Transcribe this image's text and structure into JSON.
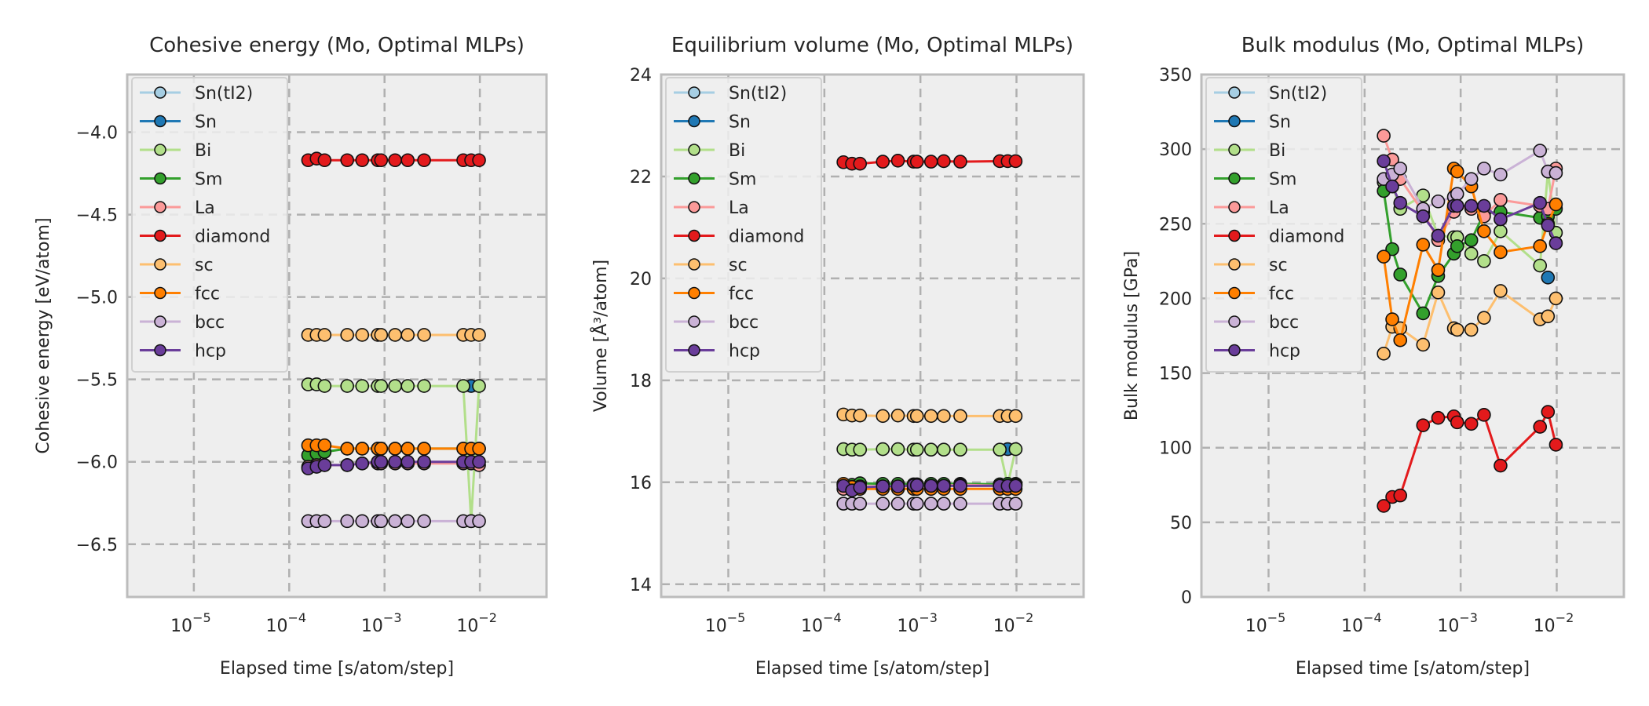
{
  "series_styles": [
    {
      "name": "Sn(tI2)",
      "line": "#a6cee3",
      "marker": "#a6cee3"
    },
    {
      "name": "Sn",
      "line": "#1f78b4",
      "marker": "#1f78b4"
    },
    {
      "name": "Bi",
      "line": "#b2df8a",
      "marker": "#b2df8a"
    },
    {
      "name": "Sm",
      "line": "#33a02c",
      "marker": "#33a02c"
    },
    {
      "name": "La",
      "line": "#fb9a99",
      "marker": "#fb9a99"
    },
    {
      "name": "diamond",
      "line": "#e31a1c",
      "marker": "#e31a1c"
    },
    {
      "name": "sc",
      "line": "#fdbf6f",
      "marker": "#fdbf6f"
    },
    {
      "name": "fcc",
      "line": "#ff7f00",
      "marker": "#ff7f00"
    },
    {
      "name": "bcc",
      "line": "#cab2d6",
      "marker": "#cab2d6"
    },
    {
      "name": "hcp",
      "line": "#6a3d9a",
      "marker": "#6a3d9a"
    }
  ],
  "x_common": [
    0.000158,
    0.000194,
    0.000235,
    0.000406,
    0.000583,
    0.00085,
    0.00092,
    0.00129,
    0.00175,
    0.0026,
    0.0067,
    0.0081,
    0.0098
  ],
  "chart_data": [
    {
      "type": "line",
      "title": "Cohesive energy (Mo, Optimal MLPs)",
      "xlabel": "Elapsed time [s/atom/step]",
      "ylabel": "Cohesive energy [eV/atom]",
      "xscale": "log",
      "xlim": [
        2e-06,
        0.05
      ],
      "ylim": [
        -6.82,
        -3.65
      ],
      "xticks": [
        {
          "v": 1e-05,
          "base": "10",
          "exp": "−5"
        },
        {
          "v": 0.0001,
          "base": "10",
          "exp": "−4"
        },
        {
          "v": 0.001,
          "base": "10",
          "exp": "−3"
        },
        {
          "v": 0.01,
          "base": "10",
          "exp": "−2"
        }
      ],
      "yticks": [
        {
          "v": -4.0,
          "label": "−4.0"
        },
        {
          "v": -4.5,
          "label": "−4.5"
        },
        {
          "v": -5.0,
          "label": "−5.0"
        },
        {
          "v": -5.5,
          "label": "−5.5"
        },
        {
          "v": -6.0,
          "label": "−6.0"
        },
        {
          "v": -6.5,
          "label": "−6.5"
        }
      ],
      "grid": true,
      "legend": "upper-left",
      "series": [
        {
          "name": "Sn(tI2)",
          "values": [
            null,
            null,
            null,
            null,
            null,
            null,
            null,
            null,
            null,
            null,
            null,
            null,
            null
          ]
        },
        {
          "name": "Sn",
          "values": [
            null,
            null,
            null,
            null,
            null,
            null,
            null,
            null,
            null,
            null,
            null,
            -5.54,
            null
          ]
        },
        {
          "name": "Bi",
          "values": [
            -5.53,
            -5.53,
            -5.54,
            -5.54,
            -5.54,
            -5.54,
            -5.54,
            -5.54,
            -5.54,
            -5.54,
            -5.54,
            -6.36,
            -5.54
          ]
        },
        {
          "name": "Sm",
          "values": [
            -5.96,
            -5.95,
            -5.94,
            -5.92,
            -5.92,
            -5.92,
            -5.92,
            -5.92,
            -5.92,
            -5.92,
            -5.92,
            -5.92,
            -5.92
          ]
        },
        {
          "name": "La",
          "values": [
            -6.03,
            -6.02,
            -6.02,
            -6.02,
            -6.01,
            -6.01,
            -6.01,
            -6.01,
            -6.01,
            -6.01,
            -6.01,
            -6.01,
            -6.02
          ]
        },
        {
          "name": "diamond",
          "values": [
            -4.17,
            -4.16,
            -4.17,
            -4.17,
            -4.17,
            -4.17,
            -4.17,
            -4.17,
            -4.17,
            -4.17,
            -4.17,
            -4.17,
            -4.17
          ]
        },
        {
          "name": "sc",
          "values": [
            -5.23,
            -5.23,
            -5.23,
            -5.23,
            -5.23,
            -5.23,
            -5.23,
            -5.23,
            -5.23,
            -5.23,
            -5.23,
            -5.23,
            -5.23
          ]
        },
        {
          "name": "fcc",
          "values": [
            -5.9,
            -5.9,
            -5.9,
            -5.92,
            -5.92,
            -5.92,
            -5.92,
            -5.92,
            -5.92,
            -5.92,
            -5.92,
            -5.92,
            -5.92
          ]
        },
        {
          "name": "bcc",
          "values": [
            -6.36,
            -6.36,
            -6.36,
            -6.36,
            -6.36,
            -6.36,
            -6.36,
            -6.36,
            -6.36,
            -6.36,
            -6.36,
            -6.36,
            -6.36
          ]
        },
        {
          "name": "hcp",
          "values": [
            -6.04,
            -6.03,
            -6.02,
            -6.02,
            -6.01,
            -6.0,
            -6.0,
            -6.0,
            -6.0,
            -6.0,
            -6.0,
            -6.0,
            -6.0
          ]
        }
      ]
    },
    {
      "type": "line",
      "title": "Equilibrium volume (Mo, Optimal MLPs)",
      "xlabel": "Elapsed time [s/atom/step]",
      "ylabel": "Volume [Å³/atom]",
      "xscale": "log",
      "xlim": [
        2e-06,
        0.05
      ],
      "ylim": [
        13.75,
        24.0
      ],
      "xticks": [
        {
          "v": 1e-05,
          "base": "10",
          "exp": "−5"
        },
        {
          "v": 0.0001,
          "base": "10",
          "exp": "−4"
        },
        {
          "v": 0.001,
          "base": "10",
          "exp": "−3"
        },
        {
          "v": 0.01,
          "base": "10",
          "exp": "−2"
        }
      ],
      "yticks": [
        {
          "v": 14,
          "label": "14"
        },
        {
          "v": 16,
          "label": "16"
        },
        {
          "v": 18,
          "label": "18"
        },
        {
          "v": 20,
          "label": "20"
        },
        {
          "v": 22,
          "label": "22"
        },
        {
          "v": 24,
          "label": "24"
        }
      ],
      "grid": true,
      "legend": "upper-left",
      "series": [
        {
          "name": "Sn(tI2)",
          "values": [
            null,
            null,
            null,
            null,
            null,
            null,
            null,
            null,
            null,
            null,
            null,
            null,
            null
          ]
        },
        {
          "name": "Sn",
          "values": [
            null,
            null,
            null,
            null,
            null,
            null,
            null,
            null,
            null,
            null,
            null,
            16.65,
            null
          ]
        },
        {
          "name": "Bi",
          "values": [
            16.65,
            16.64,
            16.64,
            16.65,
            16.65,
            16.64,
            16.64,
            16.64,
            16.64,
            16.64,
            16.64,
            15.95,
            16.65
          ]
        },
        {
          "name": "Sm",
          "values": [
            15.96,
            15.95,
            15.98,
            15.97,
            15.97,
            15.96,
            15.96,
            15.97,
            15.97,
            15.97,
            15.96,
            15.97,
            15.97
          ]
        },
        {
          "name": "La",
          "values": [
            15.87,
            15.9,
            15.92,
            15.92,
            15.92,
            15.93,
            15.93,
            15.93,
            15.93,
            15.95,
            15.93,
            15.93,
            15.95
          ]
        },
        {
          "name": "diamond",
          "values": [
            22.28,
            22.25,
            22.25,
            22.29,
            22.31,
            22.29,
            22.29,
            22.29,
            22.3,
            22.29,
            22.3,
            22.3,
            22.3
          ]
        },
        {
          "name": "sc",
          "values": [
            17.33,
            17.31,
            17.31,
            17.3,
            17.31,
            17.3,
            17.3,
            17.3,
            17.3,
            17.3,
            17.3,
            17.3,
            17.3
          ]
        },
        {
          "name": "fcc",
          "values": [
            15.97,
            15.91,
            15.87,
            15.87,
            15.87,
            15.87,
            15.87,
            15.87,
            15.87,
            15.87,
            15.87,
            15.87,
            15.87
          ]
        },
        {
          "name": "bcc",
          "values": [
            15.58,
            15.58,
            15.58,
            15.58,
            15.58,
            15.58,
            15.58,
            15.58,
            15.58,
            15.58,
            15.58,
            15.58,
            15.58
          ]
        },
        {
          "name": "hcp",
          "values": [
            15.93,
            15.84,
            15.9,
            15.92,
            15.92,
            15.94,
            15.94,
            15.93,
            15.93,
            15.93,
            15.93,
            15.93,
            15.93
          ]
        }
      ]
    },
    {
      "type": "line",
      "title": "Bulk modulus (Mo, Optimal MLPs)",
      "xlabel": "Elapsed time [s/atom/step]",
      "ylabel": "Bulk modulus [GPa]",
      "xscale": "log",
      "xlim": [
        2e-06,
        0.05
      ],
      "ylim": [
        0,
        350
      ],
      "xticks": [
        {
          "v": 1e-05,
          "base": "10",
          "exp": "−5"
        },
        {
          "v": 0.0001,
          "base": "10",
          "exp": "−4"
        },
        {
          "v": 0.001,
          "base": "10",
          "exp": "−3"
        },
        {
          "v": 0.01,
          "base": "10",
          "exp": "−2"
        }
      ],
      "yticks": [
        {
          "v": 0,
          "label": "0"
        },
        {
          "v": 50,
          "label": "50"
        },
        {
          "v": 100,
          "label": "100"
        },
        {
          "v": 150,
          "label": "150"
        },
        {
          "v": 200,
          "label": "200"
        },
        {
          "v": 250,
          "label": "250"
        },
        {
          "v": 300,
          "label": "300"
        },
        {
          "v": 350,
          "label": "350"
        }
      ],
      "grid": true,
      "legend": "upper-left",
      "series": [
        {
          "name": "Sn(tI2)",
          "values": [
            null,
            null,
            null,
            null,
            null,
            null,
            null,
            null,
            null,
            null,
            null,
            null,
            null
          ]
        },
        {
          "name": "Sn",
          "values": [
            null,
            null,
            null,
            null,
            null,
            null,
            null,
            null,
            null,
            null,
            null,
            214,
            null
          ]
        },
        {
          "name": "Bi",
          "values": [
            278,
            276,
            260,
            269,
            242,
            241,
            241,
            230,
            225,
            245,
            222,
            285,
            244
          ]
        },
        {
          "name": "Sm",
          "values": [
            272,
            233,
            216,
            190,
            215,
            230,
            235,
            239,
            257,
            258,
            254,
            255,
            260
          ]
        },
        {
          "name": "La",
          "values": [
            309,
            293,
            280,
            258,
            239,
            258,
            262,
            260,
            255,
            266,
            262,
            260,
            287
          ]
        },
        {
          "name": "diamond",
          "values": [
            61,
            67,
            68,
            115,
            120,
            121,
            117,
            116,
            122,
            88,
            114,
            124,
            102
          ]
        },
        {
          "name": "sc",
          "values": [
            163,
            181,
            180,
            169,
            204,
            180,
            179,
            179,
            187,
            205,
            186,
            188,
            200
          ]
        },
        {
          "name": "fcc",
          "values": [
            228,
            186,
            172,
            236,
            219,
            287,
            285,
            275,
            245,
            231,
            235,
            250,
            263
          ]
        },
        {
          "name": "bcc",
          "values": [
            280,
            283,
            287,
            260,
            265,
            268,
            270,
            280,
            287,
            283,
            299,
            285,
            284
          ]
        },
        {
          "name": "hcp",
          "values": [
            292,
            275,
            264,
            255,
            242,
            262,
            262,
            262,
            262,
            253,
            264,
            249,
            237
          ]
        }
      ]
    }
  ]
}
